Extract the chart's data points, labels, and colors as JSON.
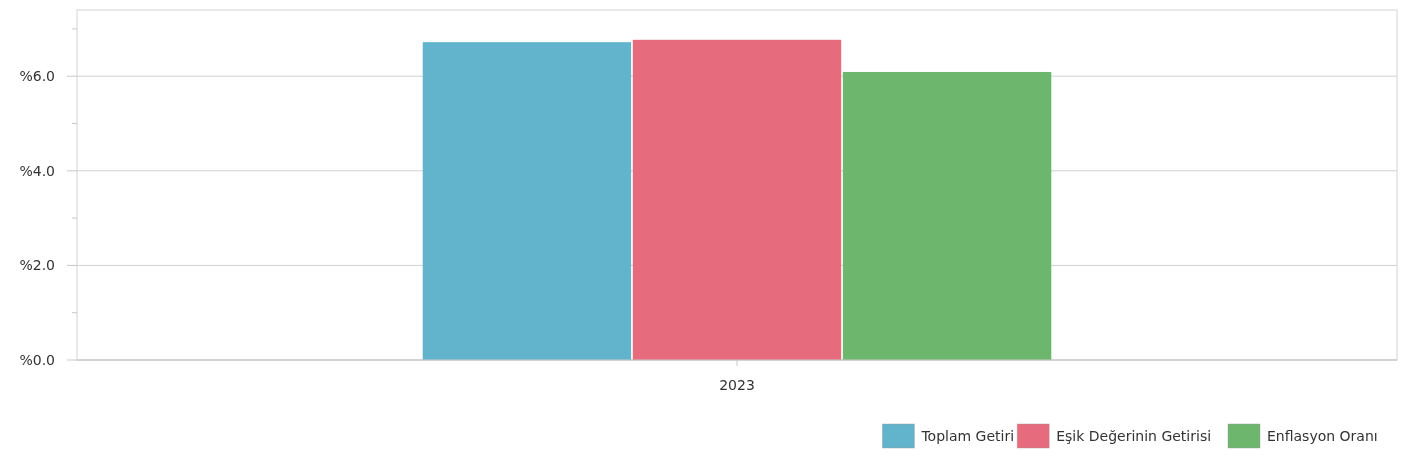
{
  "chart_data": {
    "type": "bar",
    "categories": [
      "2023"
    ],
    "series": [
      {
        "name": "Toplam Getiri",
        "color": "#62b3cc",
        "values": [
          6.72
        ]
      },
      {
        "name": "Eşik Değerinin Getirisi",
        "color": "#e66c7d",
        "values": [
          6.77
        ]
      },
      {
        "name": "Enflasyon Oranı",
        "color": "#6db66d",
        "values": [
          6.09
        ]
      }
    ],
    "ylim": [
      0,
      7.4
    ],
    "yticks": [
      {
        "value": 0,
        "label": "%0.0"
      },
      {
        "value": 1,
        "label": null
      },
      {
        "value": 2,
        "label": "%2.0"
      },
      {
        "value": 3,
        "label": null
      },
      {
        "value": 4,
        "label": "%4.0"
      },
      {
        "value": 5,
        "label": null
      },
      {
        "value": 6,
        "label": "%6.0"
      },
      {
        "value": 7,
        "label": null
      }
    ],
    "grid": "y",
    "legend": "bottom right"
  }
}
